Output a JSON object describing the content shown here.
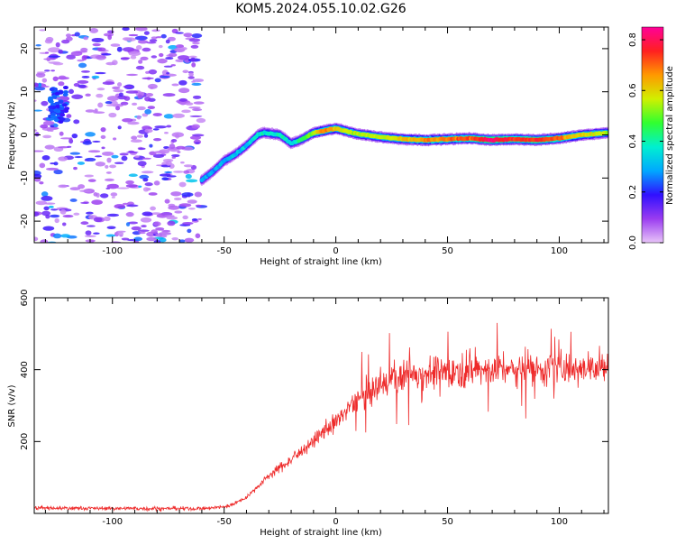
{
  "title": "KOM5.2024.055.10.02.G26",
  "chart_data": [
    {
      "type": "heatmap",
      "xlabel": "Height of straight line (km)",
      "ylabel": "Frequency (Hz)",
      "xlim": [
        -135,
        122
      ],
      "ylim": [
        -25,
        25
      ],
      "xticks": [
        -100,
        -50,
        0,
        50,
        100
      ],
      "xtick_labels": [
        "-100",
        "-50",
        "0",
        "50",
        "100"
      ],
      "yticks": [
        -20,
        -10,
        0,
        10,
        20
      ],
      "ytick_labels": [
        "-20",
        "-10",
        "0",
        "10",
        "20"
      ],
      "colorbar": {
        "label": "Normalized spectral amplitude",
        "range": [
          0,
          0.85
        ],
        "ticks": [
          0.0,
          0.2,
          0.4,
          0.6,
          0.8
        ],
        "tick_labels": [
          "0.0",
          "0.2",
          "0.4",
          "0.6",
          "0.8"
        ],
        "colormap": [
          "#e8c4f8",
          "#9a3cf0",
          "#3010ff",
          "#00a8ff",
          "#00f0d0",
          "#30ff30",
          "#d0f000",
          "#ff9900",
          "#ff2020",
          "#ff0099"
        ]
      },
      "signal_track": {
        "x": [
          -60,
          -55,
          -50,
          -45,
          -40,
          -35,
          -32,
          -25,
          -20,
          -15,
          -10,
          -5,
          0,
          5,
          10,
          20,
          30,
          40,
          50,
          60,
          70,
          80,
          90,
          100,
          110,
          122
        ],
        "frequency": [
          -10.5,
          -8.5,
          -6,
          -4.5,
          -2.5,
          0,
          0.5,
          0,
          -2,
          -1,
          0.5,
          1,
          1.5,
          0.8,
          0.2,
          -0.5,
          -1,
          -1.2,
          -1,
          -0.8,
          -1.2,
          -1,
          -1.2,
          -0.8,
          0,
          0.5
        ],
        "amplitude": [
          0.28,
          0.3,
          0.32,
          0.32,
          0.34,
          0.36,
          0.38,
          0.4,
          0.36,
          0.42,
          0.55,
          0.68,
          0.62,
          0.58,
          0.55,
          0.55,
          0.6,
          0.66,
          0.68,
          0.72,
          0.82,
          0.72,
          0.76,
          0.7,
          0.6,
          0.55
        ]
      },
      "grid": false
    },
    {
      "type": "line",
      "xlabel": "Height of straight line (km)",
      "ylabel": "SNR (v/v)",
      "xlim": [
        -135,
        122
      ],
      "ylim": [
        0,
        600
      ],
      "xticks": [
        -100,
        -50,
        0,
        50,
        100
      ],
      "xtick_labels": [
        "-100",
        "-50",
        "0",
        "50",
        "100"
      ],
      "yticks": [
        200,
        400,
        600
      ],
      "ytick_labels": [
        "200",
        "400",
        "600"
      ],
      "color": "#ee2a2a",
      "trend": {
        "x": [
          -135,
          -100,
          -60,
          -50,
          -45,
          -40,
          -35,
          -30,
          -20,
          -10,
          0,
          10,
          20,
          25,
          30,
          40,
          50,
          60,
          70,
          80,
          90,
          100,
          110,
          122
        ],
        "snr": [
          15,
          14,
          13,
          18,
          28,
          45,
          75,
          105,
          150,
          200,
          255,
          320,
          350,
          380,
          385,
          390,
          395,
          400,
          402,
          400,
          405,
          405,
          410,
          400
        ]
      },
      "grid": false
    }
  ]
}
